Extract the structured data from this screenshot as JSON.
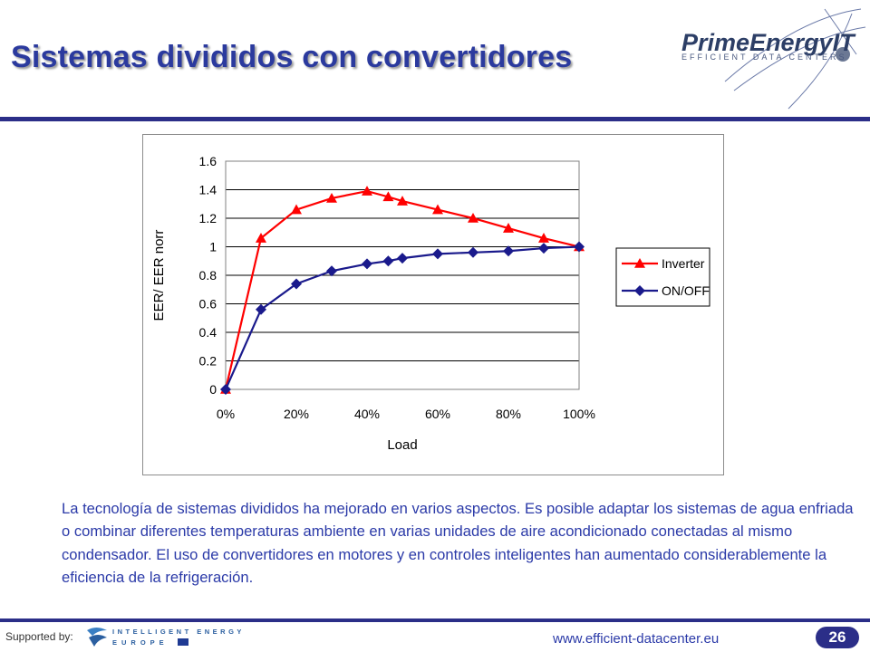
{
  "slide": {
    "title": "Sistemas divididos con convertidores",
    "logo_text": "PrimeEnergyIT",
    "logo_subtext": "EFFICIENT DATA CENTERS",
    "body": "La tecnología de sistemas divididos ha mejorado en varios aspectos. Es posible adaptar los sistemas de agua enfriada o combinar diferentes temperaturas ambiente en varias unidades de aire acondicionado conectadas al mismo condensador. El uso de convertidores en motores y en controles inteligentes han aumentado considerablemente la eficiencia de la refrigeración.",
    "supported_by": "Supported by:",
    "sponsor_line1": "INTELLIGENT ENERGY",
    "sponsor_line2": "EUROPE",
    "footer_url": "www.efficient-datacenter.eu",
    "page_number": "26"
  },
  "colors": {
    "title": "#2b3a9e",
    "rule": "#2b2e88",
    "inverter": "#ff0000",
    "onoff": "#1a1a8c"
  },
  "chart_data": {
    "type": "line",
    "xlabel": "Load",
    "ylabel": "EER/ EER norr",
    "x_unit": "%",
    "xlim": [
      0,
      100
    ],
    "ylim": [
      0,
      1.6
    ],
    "x_ticks": [
      "0%",
      "20%",
      "40%",
      "60%",
      "80%",
      "100%"
    ],
    "y_ticks": [
      "0",
      "0.2",
      "0.4",
      "0.6",
      "0.8",
      "1",
      "1.2",
      "1.4",
      "1.6"
    ],
    "grid": "horizontal",
    "legend_position": "right",
    "series": [
      {
        "name": "Inverter",
        "marker": "triangle",
        "color": "#ff0000",
        "points": [
          [
            0,
            0
          ],
          [
            10,
            1.06
          ],
          [
            20,
            1.26
          ],
          [
            30,
            1.34
          ],
          [
            40,
            1.39
          ],
          [
            46,
            1.35
          ],
          [
            50,
            1.32
          ],
          [
            60,
            1.26
          ],
          [
            70,
            1.2
          ],
          [
            80,
            1.13
          ],
          [
            90,
            1.06
          ],
          [
            100,
            1.0
          ]
        ]
      },
      {
        "name": "ON/OFF",
        "marker": "diamond",
        "color": "#1a1a8c",
        "points": [
          [
            0,
            0
          ],
          [
            10,
            0.56
          ],
          [
            20,
            0.74
          ],
          [
            30,
            0.83
          ],
          [
            40,
            0.88
          ],
          [
            46,
            0.9
          ],
          [
            50,
            0.92
          ],
          [
            60,
            0.95
          ],
          [
            70,
            0.96
          ],
          [
            80,
            0.97
          ],
          [
            90,
            0.99
          ],
          [
            100,
            1.0
          ]
        ]
      }
    ]
  }
}
